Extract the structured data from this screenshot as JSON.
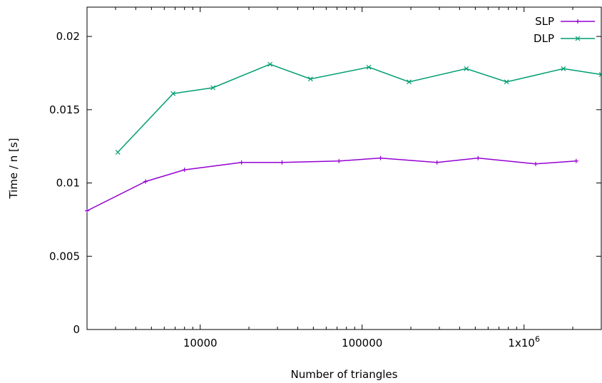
{
  "chart_data": {
    "type": "line",
    "title": "",
    "xlabel": "Number of triangles",
    "ylabel": "Time / n [s]",
    "xscale": "log",
    "xlim": [
      2000,
      3000000
    ],
    "ylim": [
      0,
      0.022
    ],
    "grid": false,
    "legend_position": "top-right",
    "x_ticks": [
      {
        "value": 10000,
        "label": "10000"
      },
      {
        "value": 100000,
        "label": "100000"
      },
      {
        "value": 1000000,
        "label": "1x10",
        "sup": "6"
      }
    ],
    "y_ticks": [
      {
        "value": 0,
        "label": "0"
      },
      {
        "value": 0.005,
        "label": "0.005"
      },
      {
        "value": 0.01,
        "label": "0.01"
      },
      {
        "value": 0.015,
        "label": "0.015"
      },
      {
        "value": 0.02,
        "label": "0.02"
      }
    ],
    "series": [
      {
        "name": "SLP",
        "color": "#9400d3",
        "marker": "plus",
        "x": [
          2000,
          4600,
          8000,
          18000,
          32000,
          72000,
          130000,
          290000,
          520000,
          1180000,
          2100000
        ],
        "y": [
          0.0081,
          0.0101,
          0.0109,
          0.0114,
          0.0114,
          0.0115,
          0.0117,
          0.0114,
          0.0117,
          0.0113,
          0.0115
        ]
      },
      {
        "name": "DLP",
        "color": "#009e73",
        "marker": "cross",
        "x": [
          3100,
          6800,
          12000,
          27000,
          48000,
          110000,
          195000,
          440000,
          780000,
          1750000,
          3000000
        ],
        "y": [
          0.0121,
          0.0161,
          0.0165,
          0.0181,
          0.0171,
          0.0179,
          0.0169,
          0.0178,
          0.0169,
          0.0178,
          0.0174
        ]
      }
    ]
  }
}
